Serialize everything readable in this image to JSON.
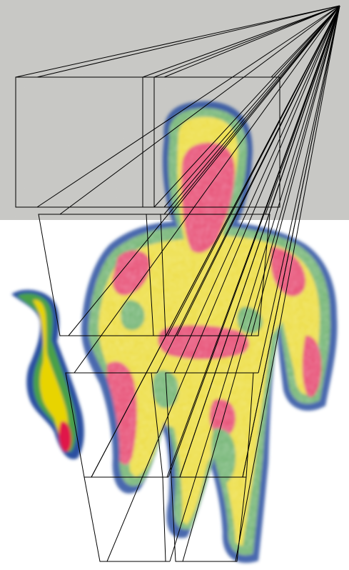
{
  "scene": {
    "subject": "thermal-image-person-with-cat",
    "apex": "top-right",
    "grid_columns": 2,
    "grid_rows": 4
  },
  "colors": {
    "wall": "#c9c9c6",
    "floor": "#ffffff",
    "thermal_hot": "#e0124a",
    "thermal_warm": "#e8d400",
    "thermal_mid": "#49a04a",
    "thermal_cool": "#2a4fa0",
    "frustum_lines": "#000000"
  }
}
